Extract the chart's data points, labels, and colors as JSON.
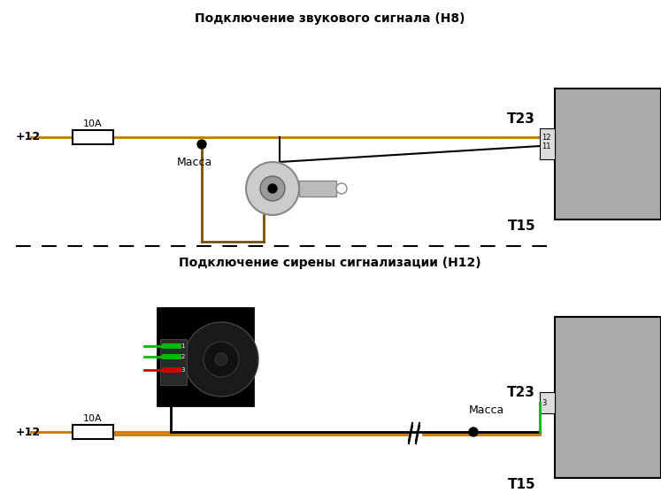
{
  "title1": "Подключение звукового сигнала (Н8)",
  "title2": "Подключение сирены сигнализации (Н12)",
  "bg_color": "#ffffff",
  "wire_orange": "#c87800",
  "wire_brown": "#7a5000",
  "wire_black": "#000000",
  "wire_green": "#00bb00",
  "wire_red": "#cc0000",
  "connector_gray": "#aaaaaa",
  "text_color": "#000000",
  "label_plus12": "+12",
  "label_10A": "10A",
  "label_massa1": "Масса",
  "label_massa2": "Масса",
  "label_T23": "Т23",
  "label_T15": "Т15",
  "label_12": "12",
  "label_11": "11",
  "label_3": "3"
}
